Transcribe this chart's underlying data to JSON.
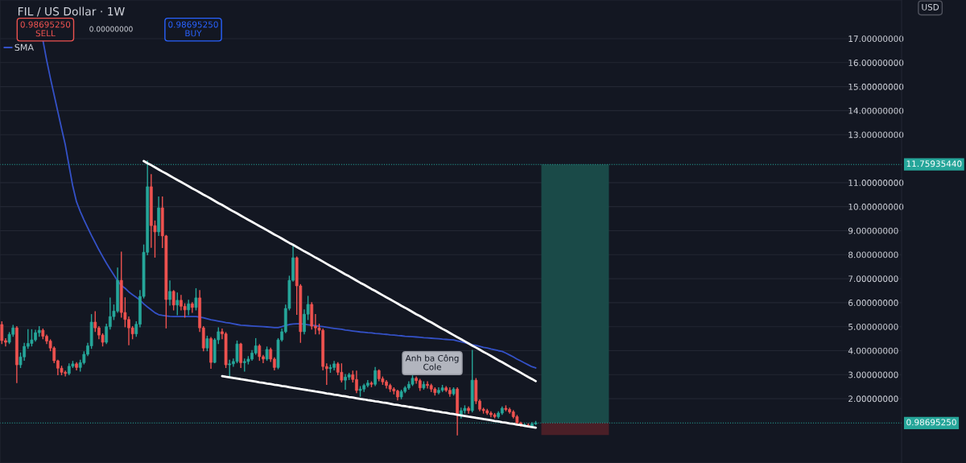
{
  "chart_data": {
    "type": "candlestick",
    "title": "FIL / US Dollar · 1W",
    "categories": [
      null,
      null,
      null,
      null,
      null,
      null,
      null,
      null,
      null,
      null,
      null,
      null,
      null,
      null,
      null,
      null,
      null,
      null,
      null,
      null,
      null,
      null,
      null,
      null,
      null,
      null,
      null,
      null,
      null,
      null,
      null,
      null,
      null,
      null,
      null,
      null,
      null,
      null,
      null,
      null,
      null,
      null,
      null,
      null,
      null,
      null,
      null,
      null,
      null,
      null,
      null,
      null,
      null,
      null,
      null,
      null,
      null,
      null,
      null,
      null,
      null,
      null,
      null,
      null,
      null,
      null,
      null,
      null,
      null,
      null,
      null,
      null,
      null,
      null,
      null,
      null,
      null,
      null,
      null,
      null,
      null,
      null,
      null,
      null,
      null,
      null,
      null,
      null,
      null,
      null,
      null,
      null,
      null,
      null,
      null,
      null,
      null,
      null,
      null,
      null,
      null,
      null,
      null,
      null,
      null,
      null,
      null,
      null,
      null,
      null,
      null,
      null,
      null,
      null,
      null,
      null,
      null,
      null,
      null,
      null,
      null,
      null,
      null,
      null,
      null,
      null,
      null,
      null,
      null,
      null,
      null,
      null,
      null,
      null,
      null,
      null,
      null,
      null,
      null,
      null,
      null,
      null,
      null,
      null
    ],
    "ohlc": [
      [
        5.09,
        5.2,
        4.3,
        4.42
      ],
      [
        4.42,
        4.5,
        4.2,
        4.35
      ],
      [
        4.35,
        4.75,
        4.3,
        4.68
      ],
      [
        4.68,
        5.05,
        4.6,
        4.95
      ],
      [
        4.95,
        5.0,
        2.67,
        3.41
      ],
      [
        3.41,
        3.9,
        3.3,
        3.74
      ],
      [
        3.74,
        4.3,
        3.6,
        4.18
      ],
      [
        4.18,
        4.87,
        4.1,
        4.3
      ],
      [
        4.3,
        4.87,
        4.2,
        4.45
      ],
      [
        4.45,
        4.85,
        4.4,
        4.75
      ],
      [
        4.75,
        5.0,
        4.6,
        4.85
      ],
      [
        4.85,
        4.9,
        4.5,
        4.6
      ],
      [
        4.6,
        4.65,
        4.3,
        4.4
      ],
      [
        4.4,
        4.45,
        4.0,
        4.11
      ],
      [
        4.11,
        4.15,
        3.5,
        3.58
      ],
      [
        3.58,
        3.6,
        3.0,
        3.27
      ],
      [
        3.27,
        3.35,
        3.0,
        3.1
      ],
      [
        3.1,
        3.15,
        2.95,
        3.05
      ],
      [
        3.05,
        3.45,
        3.0,
        3.35
      ],
      [
        3.35,
        3.55,
        3.3,
        3.45
      ],
      [
        3.45,
        3.5,
        3.2,
        3.3
      ],
      [
        3.3,
        3.6,
        3.15,
        3.5
      ],
      [
        3.5,
        3.95,
        3.45,
        3.85
      ],
      [
        3.85,
        4.3,
        3.8,
        4.2
      ],
      [
        4.2,
        5.5,
        4.1,
        5.19
      ],
      [
        5.19,
        5.62,
        4.8,
        4.95
      ],
      [
        4.95,
        5.0,
        4.5,
        4.65
      ],
      [
        4.65,
        4.7,
        4.2,
        4.35
      ],
      [
        4.35,
        5.1,
        4.3,
        5.0
      ],
      [
        5.0,
        6.19,
        4.9,
        5.42
      ],
      [
        5.42,
        5.9,
        5.3,
        5.65
      ],
      [
        5.65,
        7.44,
        5.6,
        6.93
      ],
      [
        6.93,
        8.1,
        5.4,
        5.59
      ],
      [
        5.59,
        6.2,
        5.0,
        5.3
      ],
      [
        5.3,
        5.4,
        4.25,
        4.95
      ],
      [
        4.95,
        5.0,
        4.5,
        4.7
      ],
      [
        4.7,
        5.2,
        4.6,
        5.1
      ],
      [
        5.1,
        6.5,
        5.0,
        6.26
      ],
      [
        6.26,
        8.4,
        6.2,
        8.1
      ],
      [
        8.1,
        11.9,
        8.0,
        10.83
      ],
      [
        10.83,
        11.33,
        8.31,
        9.21
      ],
      [
        9.21,
        9.4,
        7.9,
        8.95
      ],
      [
        8.95,
        10.4,
        8.8,
        9.95
      ],
      [
        9.95,
        10.4,
        8.3,
        8.78
      ],
      [
        8.78,
        8.8,
        4.95,
        6.13
      ],
      [
        6.13,
        6.9,
        5.9,
        6.47
      ],
      [
        6.47,
        6.5,
        5.7,
        5.9
      ],
      [
        5.9,
        6.4,
        5.5,
        6.1
      ],
      [
        6.1,
        6.3,
        5.7,
        5.85
      ],
      [
        5.85,
        5.95,
        5.4,
        5.7
      ],
      [
        5.7,
        6.1,
        5.5,
        5.95
      ],
      [
        5.95,
        6.0,
        5.6,
        5.8
      ],
      [
        5.8,
        6.58,
        5.7,
        6.2
      ],
      [
        6.2,
        6.5,
        4.8,
        4.95
      ],
      [
        4.95,
        5.0,
        4.0,
        4.11
      ],
      [
        4.11,
        4.6,
        4.0,
        4.5
      ],
      [
        4.5,
        4.55,
        3.27,
        3.51
      ],
      [
        3.51,
        4.5,
        3.5,
        4.45
      ],
      [
        4.45,
        4.95,
        4.3,
        4.79
      ],
      [
        4.79,
        4.9,
        4.5,
        4.7
      ],
      [
        4.7,
        4.75,
        3.3,
        3.41
      ],
      [
        3.41,
        3.6,
        2.91,
        3.45
      ],
      [
        3.45,
        3.65,
        3.35,
        3.55
      ],
      [
        3.55,
        4.4,
        3.5,
        4.28
      ],
      [
        4.28,
        4.3,
        3.3,
        3.5
      ],
      [
        3.5,
        3.65,
        3.15,
        3.55
      ],
      [
        3.55,
        3.75,
        3.45,
        3.65
      ],
      [
        3.65,
        4.0,
        3.6,
        3.9
      ],
      [
        3.9,
        4.5,
        3.85,
        4.2
      ],
      [
        4.2,
        4.25,
        3.6,
        3.75
      ],
      [
        3.75,
        3.8,
        3.5,
        3.65
      ],
      [
        3.65,
        4.15,
        3.6,
        4.05
      ],
      [
        4.05,
        4.1,
        3.55,
        3.65
      ],
      [
        3.65,
        3.7,
        3.2,
        3.3
      ],
      [
        3.3,
        4.5,
        3.25,
        4.45
      ],
      [
        4.45,
        4.9,
        4.4,
        4.79
      ],
      [
        4.79,
        5.9,
        4.75,
        5.76
      ],
      [
        5.76,
        7.1,
        5.7,
        6.93
      ],
      [
        6.93,
        8.38,
        6.9,
        7.87
      ],
      [
        7.87,
        7.9,
        5.52,
        6.7
      ],
      [
        6.7,
        6.75,
        4.35,
        4.79
      ],
      [
        4.79,
        5.7,
        4.7,
        5.52
      ],
      [
        5.52,
        6.26,
        5.3,
        5.93
      ],
      [
        5.93,
        6.0,
        4.9,
        5.02
      ],
      [
        5.02,
        5.5,
        4.7,
        4.95
      ],
      [
        4.95,
        5.1,
        4.7,
        4.85
      ],
      [
        4.85,
        4.9,
        3.2,
        3.34
      ],
      [
        3.34,
        3.45,
        2.6,
        3.25
      ],
      [
        3.25,
        3.4,
        3.1,
        3.3
      ],
      [
        3.3,
        3.55,
        3.2,
        3.45
      ],
      [
        3.45,
        3.5,
        3.0,
        3.1
      ],
      [
        3.1,
        3.45,
        2.7,
        2.77
      ],
      [
        2.77,
        3.0,
        2.4,
        2.9
      ],
      [
        2.9,
        3.05,
        2.8,
        3.0
      ],
      [
        3.0,
        3.15,
        2.7,
        2.8
      ],
      [
        2.8,
        3.15,
        2.25,
        2.34
      ],
      [
        2.34,
        2.5,
        2.1,
        2.4
      ],
      [
        2.4,
        2.6,
        2.3,
        2.55
      ],
      [
        2.55,
        2.75,
        2.5,
        2.65
      ],
      [
        2.65,
        2.7,
        2.5,
        2.6
      ],
      [
        2.6,
        3.3,
        2.55,
        3.17
      ],
      [
        3.17,
        3.2,
        2.75,
        2.83
      ],
      [
        2.83,
        2.9,
        2.6,
        2.7
      ],
      [
        2.7,
        2.75,
        2.45,
        2.55
      ],
      [
        2.55,
        2.6,
        2.3,
        2.4
      ],
      [
        2.4,
        2.45,
        2.2,
        2.32
      ],
      [
        2.32,
        2.35,
        1.95,
        2.07
      ],
      [
        2.07,
        2.35,
        2.0,
        2.3
      ],
      [
        2.3,
        2.5,
        2.25,
        2.45
      ],
      [
        2.45,
        2.7,
        2.4,
        2.6
      ],
      [
        2.6,
        2.95,
        2.55,
        2.85
      ],
      [
        2.85,
        2.9,
        2.65,
        2.75
      ],
      [
        2.75,
        2.8,
        2.35,
        2.45
      ],
      [
        2.45,
        2.7,
        2.4,
        2.6
      ],
      [
        2.6,
        2.7,
        2.45,
        2.55
      ],
      [
        2.55,
        2.6,
        2.3,
        2.4
      ],
      [
        2.4,
        2.45,
        2.15,
        2.25
      ],
      [
        2.25,
        2.45,
        2.2,
        2.35
      ],
      [
        2.35,
        2.55,
        2.3,
        2.45
      ],
      [
        2.45,
        2.5,
        2.3,
        2.35
      ],
      [
        2.35,
        2.45,
        2.1,
        2.2
      ],
      [
        2.2,
        2.45,
        2.15,
        2.4
      ],
      [
        2.4,
        2.45,
        0.49,
        1.33
      ],
      [
        1.33,
        1.6,
        1.2,
        1.5
      ],
      [
        1.5,
        1.7,
        1.4,
        1.6
      ],
      [
        1.6,
        1.65,
        1.4,
        1.5
      ],
      [
        1.5,
        4.01,
        1.45,
        2.77
      ],
      [
        2.77,
        2.84,
        1.8,
        1.9
      ],
      [
        1.9,
        1.95,
        1.5,
        1.56
      ],
      [
        1.56,
        1.6,
        1.4,
        1.5
      ],
      [
        1.5,
        1.55,
        1.35,
        1.4
      ],
      [
        1.4,
        1.45,
        1.25,
        1.33
      ],
      [
        1.33,
        1.38,
        1.2,
        1.25
      ],
      [
        1.25,
        1.45,
        1.2,
        1.4
      ],
      [
        1.4,
        1.65,
        1.35,
        1.6
      ],
      [
        1.6,
        1.7,
        1.5,
        1.55
      ],
      [
        1.55,
        1.6,
        1.4,
        1.45
      ],
      [
        1.45,
        1.5,
        1.2,
        1.25
      ],
      [
        1.25,
        1.3,
        0.92,
        0.99
      ],
      [
        0.99,
        1.02,
        0.85,
        0.9
      ],
      [
        0.9,
        0.95,
        0.85,
        0.9
      ],
      [
        0.9,
        0.95,
        0.82,
        0.85
      ],
      [
        0.85,
        1.0,
        0.83,
        0.95
      ],
      [
        0.95,
        1.05,
        0.93,
        0.987
      ]
    ],
    "series": [
      {
        "type": "line",
        "name": "SMA",
        "color": "#3451c7",
        "values": [
          null,
          null,
          null,
          null,
          null,
          null,
          null,
          null,
          null,
          null,
          null,
          16.93,
          16.1,
          15.35,
          14.65,
          13.95,
          13.25,
          12.57,
          11.7,
          10.85,
          10.2,
          9.8,
          9.45,
          9.12,
          8.8,
          8.5,
          8.2,
          7.92,
          7.65,
          7.4,
          7.15,
          6.9,
          6.72,
          6.6,
          6.45,
          6.33,
          6.22,
          6.1,
          5.95,
          5.82,
          5.7,
          5.58,
          5.5,
          5.47,
          5.45,
          5.43,
          5.42,
          5.42,
          5.42,
          5.42,
          5.42,
          5.42,
          5.42,
          5.4,
          5.37,
          5.33,
          5.29,
          5.26,
          5.23,
          5.2,
          5.17,
          5.15,
          5.12,
          5.09,
          5.06,
          5.05,
          5.04,
          5.03,
          5.02,
          5.01,
          5.0,
          4.99,
          4.98,
          4.96,
          4.96,
          5.0,
          5.05,
          5.09,
          5.11,
          5.12,
          5.12,
          5.1,
          5.08,
          5.06,
          5.04,
          5.02,
          5.0,
          4.98,
          4.95,
          4.93,
          4.91,
          4.89,
          4.86,
          4.84,
          4.82,
          4.8,
          4.78,
          4.77,
          4.75,
          4.74,
          4.72,
          4.71,
          4.69,
          4.68,
          4.66,
          4.65,
          4.63,
          4.62,
          4.6,
          4.59,
          4.58,
          4.57,
          4.56,
          4.54,
          4.53,
          4.52,
          4.51,
          4.5,
          4.48,
          4.47,
          4.46,
          4.45,
          4.41,
          4.37,
          4.33,
          4.29,
          4.25,
          4.22,
          4.18,
          4.14,
          4.11,
          4.07,
          4.04,
          4.0,
          3.97,
          3.9,
          3.82,
          3.74,
          3.65,
          3.57,
          3.49,
          3.41,
          3.33,
          3.28
        ]
      },
      {
        "type": "line",
        "color": "#ffffff",
        "values": [
          null,
          null,
          null,
          null,
          null,
          null,
          null,
          null,
          null,
          null,
          null,
          null,
          null,
          null,
          null,
          null,
          null,
          null,
          null,
          null,
          null,
          null,
          null,
          null,
          null,
          null,
          null,
          null,
          null,
          null,
          null,
          null,
          null,
          null,
          null,
          null,
          null,
          null,
          11.9,
          11.81,
          11.73,
          11.64,
          11.55,
          11.46,
          11.38,
          11.29,
          11.2,
          11.11,
          11.03,
          10.94,
          10.85,
          10.76,
          10.68,
          10.59,
          10.5,
          10.42,
          10.33,
          10.24,
          10.15,
          10.07,
          9.98,
          9.89,
          9.8,
          9.72,
          9.63,
          9.54,
          9.45,
          9.37,
          9.28,
          9.19,
          9.11,
          9.02,
          8.93,
          8.84,
          8.76,
          8.67,
          8.58,
          8.49,
          8.41,
          8.32,
          8.23,
          8.14,
          8.06,
          7.97,
          7.88,
          7.8,
          7.71,
          7.62,
          7.53,
          7.45,
          7.36,
          7.27,
          7.18,
          7.1,
          7.01,
          6.92,
          6.83,
          6.75,
          6.66,
          6.57,
          6.49,
          6.4,
          6.31,
          6.22,
          6.14,
          6.05,
          5.96,
          5.87,
          5.79,
          5.7,
          5.61,
          5.52,
          5.44,
          5.35,
          5.26,
          5.18,
          5.09,
          5.0,
          4.91,
          4.83,
          4.74,
          4.65,
          4.56,
          4.48,
          4.39,
          4.3,
          4.21,
          4.13,
          4.04,
          3.95,
          3.87,
          3.78,
          3.69,
          3.6,
          3.52,
          3.43,
          3.34,
          3.25,
          3.17,
          3.08,
          2.99,
          2.9,
          2.82,
          2.73
        ]
      },
      {
        "type": "line",
        "color": "#ffffff",
        "values": [
          null,
          null,
          null,
          null,
          null,
          null,
          null,
          null,
          null,
          null,
          null,
          null,
          null,
          null,
          null,
          null,
          null,
          null,
          null,
          null,
          null,
          null,
          null,
          null,
          null,
          null,
          null,
          null,
          null,
          null,
          null,
          null,
          null,
          null,
          null,
          null,
          null,
          null,
          null,
          null,
          null,
          null,
          null,
          null,
          null,
          null,
          null,
          null,
          null,
          null,
          null,
          null,
          null,
          null,
          null,
          null,
          null,
          null,
          null,
          2.94,
          2.91,
          2.89,
          2.86,
          2.84,
          2.81,
          2.79,
          2.76,
          2.74,
          2.71,
          2.68,
          2.66,
          2.63,
          2.61,
          2.58,
          2.56,
          2.53,
          2.51,
          2.48,
          2.45,
          2.43,
          2.4,
          2.38,
          2.35,
          2.33,
          2.3,
          2.28,
          2.25,
          2.22,
          2.2,
          2.17,
          2.15,
          2.12,
          2.1,
          2.07,
          2.05,
          2.02,
          1.99,
          1.97,
          1.94,
          1.92,
          1.89,
          1.87,
          1.84,
          1.82,
          1.79,
          1.76,
          1.74,
          1.71,
          1.69,
          1.66,
          1.64,
          1.61,
          1.59,
          1.56,
          1.53,
          1.51,
          1.48,
          1.46,
          1.43,
          1.41,
          1.38,
          1.36,
          1.33,
          1.3,
          1.28,
          1.25,
          1.23,
          1.2,
          1.18,
          1.15,
          1.13,
          1.1,
          1.07,
          1.05,
          1.02,
          1.0,
          0.97,
          0.95,
          0.92,
          0.9,
          0.87,
          0.84,
          0.82,
          0.79
        ]
      }
    ],
    "ylim": [
      -0.68,
      18.61
    ],
    "yticks": [
      {
        "value": 2,
        "label": "2.00000000"
      },
      {
        "value": 3,
        "label": "3.00000000"
      },
      {
        "value": 4,
        "label": "4.00000000"
      },
      {
        "value": 5,
        "label": "5.00000000"
      },
      {
        "value": 6,
        "label": "6.00000000"
      },
      {
        "value": 7,
        "label": "7.00000000"
      },
      {
        "value": 8,
        "label": "8.00000000"
      },
      {
        "value": 9,
        "label": "9.00000000"
      },
      {
        "value": 10,
        "label": "10.00000000"
      },
      {
        "value": 11,
        "label": "11.00000000"
      },
      {
        "value": 13,
        "label": "13.00000000"
      },
      {
        "value": 14,
        "label": "14.00000000"
      },
      {
        "value": 15,
        "label": "15.00000000"
      },
      {
        "value": 16,
        "label": "16.00000000"
      },
      {
        "value": 17,
        "label": "17.00000000"
      }
    ],
    "tick_labels": "y",
    "grid": "y",
    "legend": "top left",
    "ref_lines": [
      {
        "axis": "y",
        "value": 11.7593544,
        "label": "11.75935440",
        "color": "#26a69a",
        "line_style": "dotted"
      },
      {
        "axis": "y",
        "value": 0.9869525,
        "label": "0.98695250",
        "color": "#26a69a",
        "line_style": "dotted"
      }
    ],
    "annotations": [
      "Anh ba Công\nCole",
      "0.98695250\nSELL",
      "0.00000000",
      "0.98695250\nBUY",
      "USD"
    ]
  }
}
